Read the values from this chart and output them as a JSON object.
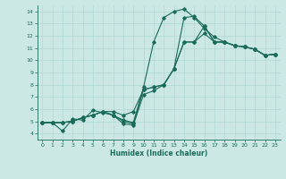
{
  "title": "",
  "xlabel": "Humidex (Indice chaleur)",
  "ylabel": "",
  "bg_color": "#cce8e5",
  "line_color": "#1a6b5a",
  "grid_color": "#b0d8d4",
  "xlim": [
    -0.5,
    23.5
  ],
  "ylim": [
    3.5,
    14.5
  ],
  "xticks": [
    0,
    1,
    2,
    3,
    4,
    5,
    6,
    7,
    8,
    9,
    10,
    11,
    12,
    13,
    14,
    15,
    16,
    17,
    18,
    19,
    20,
    21,
    22,
    23
  ],
  "yticks": [
    4,
    5,
    6,
    7,
    8,
    9,
    10,
    11,
    12,
    13,
    14
  ],
  "series": [
    [
      4.9,
      4.9,
      4.2,
      5.2,
      5.1,
      5.9,
      5.7,
      5.5,
      5.1,
      4.9,
      7.8,
      11.5,
      13.5,
      14.0,
      14.2,
      13.5,
      12.6,
      11.9,
      11.5,
      11.2,
      11.1,
      10.9,
      10.4,
      10.5
    ],
    [
      4.9,
      4.9,
      4.9,
      5.0,
      5.3,
      5.5,
      5.8,
      5.5,
      5.0,
      4.8,
      7.6,
      7.8,
      8.0,
      9.3,
      13.5,
      13.6,
      12.8,
      11.5,
      11.5,
      11.2,
      11.1,
      10.9,
      10.4,
      10.5
    ],
    [
      4.9,
      4.9,
      4.9,
      5.0,
      5.3,
      5.5,
      5.8,
      5.8,
      5.5,
      5.8,
      7.6,
      7.8,
      8.0,
      9.3,
      11.5,
      11.5,
      12.8,
      11.5,
      11.5,
      11.2,
      11.1,
      10.9,
      10.4,
      10.5
    ],
    [
      4.9,
      4.9,
      4.9,
      5.0,
      5.3,
      5.5,
      5.8,
      5.5,
      4.8,
      4.7,
      7.2,
      7.5,
      8.0,
      9.3,
      11.5,
      11.5,
      12.2,
      11.5,
      11.5,
      11.2,
      11.1,
      10.9,
      10.4,
      10.5
    ]
  ]
}
